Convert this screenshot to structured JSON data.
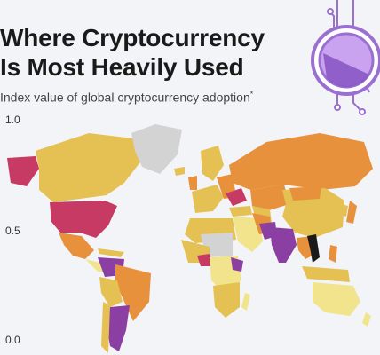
{
  "header": {
    "title_line1": "Where Cryptocurrency",
    "title_line2": "Is Most Heavily Used",
    "subtitle": "Index value of global cryptocurrency adoption",
    "subtitle_marker": "*"
  },
  "scale": {
    "labels": [
      "1.0",
      "0.5",
      "0.0"
    ]
  },
  "colors": {
    "background": "#f2f4f7",
    "highest": "#c73a63",
    "very_high": "#8b3fa3",
    "high": "#e8913c",
    "medium": "#e5c154",
    "low": "#f1e48d",
    "no_data": "#d3d3d3",
    "vietnam": "#1a1a1a",
    "badge_ring": "#9b6fd0",
    "badge_fill": "#c9a3ef"
  },
  "icons": {
    "badge": "crypto-coin-circuit-icon"
  }
}
